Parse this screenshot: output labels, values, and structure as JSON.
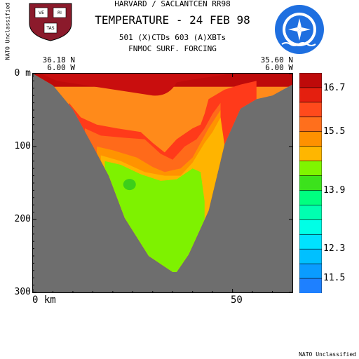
{
  "header": {
    "line1": "HARVARD / SACLANTCEN RR98",
    "line2": "TEMPERATURE - 24 FEB 98",
    "line3": "501 (X)CTDs   603 (A)XBTs",
    "line4": "FNMOC SURF. FORCING"
  },
  "classification": {
    "side": "NATO Unclassified",
    "footer": "NATO Unclassified"
  },
  "endpoints": {
    "left": {
      "lat": "36.18 N",
      "lon": "6.00 W"
    },
    "right": {
      "lat": "35.60 N",
      "lon": "6.00 W"
    }
  },
  "logos": {
    "left": {
      "name": "harvard-shield",
      "letters": [
        "VE",
        "RI",
        "TAS"
      ],
      "color": "#8b1a2b"
    },
    "right": {
      "name": "nato-saclantcen-emblem",
      "color": "#1e6fe0"
    }
  },
  "chart_data": {
    "type": "heatmap",
    "title": "TEMPERATURE - 24 FEB 98",
    "xlabel": "",
    "ylabel": "",
    "x_unit": "km",
    "y_unit": "m",
    "xlim": [
      0,
      65
    ],
    "ylim": [
      300,
      0
    ],
    "x_ticks": [
      {
        "value": 0,
        "label": "0 km"
      },
      {
        "value": 50,
        "label": "50"
      }
    ],
    "y_ticks": [
      {
        "value": 0,
        "label": "0 m"
      },
      {
        "value": 100,
        "label": "100"
      },
      {
        "value": 200,
        "label": "200"
      },
      {
        "value": 300,
        "label": "300"
      }
    ],
    "bathymetry": {
      "x": [
        0,
        5,
        10,
        15,
        19,
        23,
        29,
        35,
        36,
        39,
        44,
        48,
        52,
        56,
        60,
        65
      ],
      "depth": [
        0,
        16,
        49,
        99,
        140,
        198,
        250,
        272,
        272,
        248,
        188,
        97,
        48,
        35,
        30,
        15
      ]
    },
    "contours": [
      {
        "level": 15.9,
        "color": "#ff3a1a",
        "x": [
          9,
          12,
          16,
          21,
          27,
          30,
          33,
          36,
          40,
          42,
          43,
          44,
          48,
          52,
          56
        ],
        "depth": [
          40,
          60,
          70,
          75,
          80,
          95,
          108,
          90,
          75,
          70,
          55,
          35,
          22,
          15,
          10
        ]
      },
      {
        "level": 15.5,
        "color": "#ff6a1a",
        "x": [
          13,
          17,
          23,
          28,
          32,
          35,
          38,
          41,
          43,
          45,
          47
        ],
        "depth": [
          75,
          85,
          88,
          90,
          110,
          118,
          100,
          90,
          75,
          55,
          40
        ]
      },
      {
        "level": 14.9,
        "color": "#ff9300",
        "x": [
          16,
          20,
          26,
          30,
          33,
          37,
          40,
          42,
          44,
          47
        ],
        "depth": [
          100,
          105,
          115,
          128,
          135,
          130,
          115,
          95,
          75,
          50
        ]
      },
      {
        "level": 14.5,
        "color": "#ffb400",
        "x": [
          17,
          22,
          28,
          33,
          37,
          40,
          43,
          45,
          47,
          48
        ],
        "depth": [
          112,
          120,
          135,
          140,
          140,
          122,
          95,
          80,
          60,
          98
        ]
      },
      {
        "level": 14.1,
        "color": "#7ef200",
        "x": [
          18,
          22,
          27,
          32,
          36,
          40,
          42,
          43
        ],
        "depth": [
          120,
          125,
          138,
          147,
          145,
          130,
          135,
          175
        ]
      }
    ],
    "features": [
      {
        "name": "cold-core",
        "level": 13.9,
        "color": "#3ccf1a",
        "x": 24.2,
        "depth": 152
      },
      {
        "name": "warm-tongue",
        "level": 16.7,
        "color": "#c90e0e",
        "x": 36,
        "depth": 12
      }
    ],
    "colorbar": {
      "colors": [
        "#be0a0a",
        "#e41f0f",
        "#ff4a1c",
        "#ff6f1c",
        "#ff9100",
        "#ffb600",
        "#7ff500",
        "#3ce21c",
        "#00ff80",
        "#00ffb0",
        "#00ffe6",
        "#00e2ff",
        "#00c0ff",
        "#0a9cff",
        "#1e80ff"
      ],
      "labels": [
        {
          "value": 16.7,
          "label": "16.7",
          "index": 1
        },
        {
          "value": 15.5,
          "label": "15.5",
          "index": 4
        },
        {
          "value": 13.9,
          "label": "13.9",
          "index": 8
        },
        {
          "value": 12.3,
          "label": "12.3",
          "index": 12
        },
        {
          "value": 11.5,
          "label": "11.5",
          "index": 14
        }
      ]
    },
    "background_color": "#ff8a1a",
    "seafloor_color": "#6e6e6e"
  }
}
